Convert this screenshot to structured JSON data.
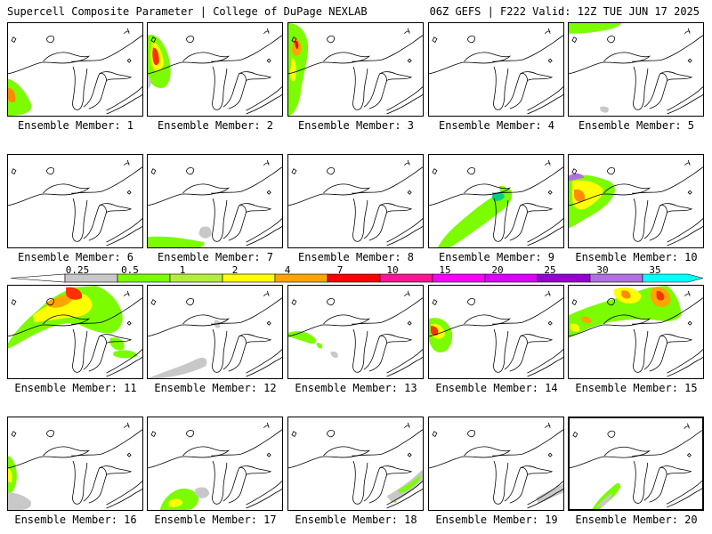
{
  "header": {
    "left": "Supercell Composite Parameter | College of DuPage NEXLAB",
    "right": "06Z GEFS | F222 Valid: 12Z TUE JUN 17 2025"
  },
  "colorbar": {
    "labels": [
      "0.25",
      "0.5",
      "1",
      "2",
      "4",
      "7",
      "10",
      "15",
      "20",
      "25",
      "30",
      "35"
    ],
    "colors": [
      "#c8c8c8",
      "#7cfc00",
      "#b3ee3a",
      "#ffff00",
      "#ffa500",
      "#ff0000",
      "#ff1493",
      "#ff00ff",
      "#dd00ff",
      "#9400d3",
      "#b070e0",
      "#00ffff"
    ]
  },
  "selected_member": 20,
  "members": [
    {
      "label": "Ensemble Member: 1"
    },
    {
      "label": "Ensemble Member: 2"
    },
    {
      "label": "Ensemble Member: 3"
    },
    {
      "label": "Ensemble Member: 4"
    },
    {
      "label": "Ensemble Member: 5"
    },
    {
      "label": "Ensemble Member: 6"
    },
    {
      "label": "Ensemble Member: 7"
    },
    {
      "label": "Ensemble Member: 8"
    },
    {
      "label": "Ensemble Member: 9"
    },
    {
      "label": "Ensemble Member: 10"
    },
    {
      "label": "Ensemble Member: 11"
    },
    {
      "label": "Ensemble Member: 12"
    },
    {
      "label": "Ensemble Member: 13"
    },
    {
      "label": "Ensemble Member: 14"
    },
    {
      "label": "Ensemble Member: 15"
    },
    {
      "label": "Ensemble Member: 16"
    },
    {
      "label": "Ensemble Member: 17"
    },
    {
      "label": "Ensemble Member: 18"
    },
    {
      "label": "Ensemble Member: 19"
    },
    {
      "label": "Ensemble Member: 20"
    }
  ]
}
